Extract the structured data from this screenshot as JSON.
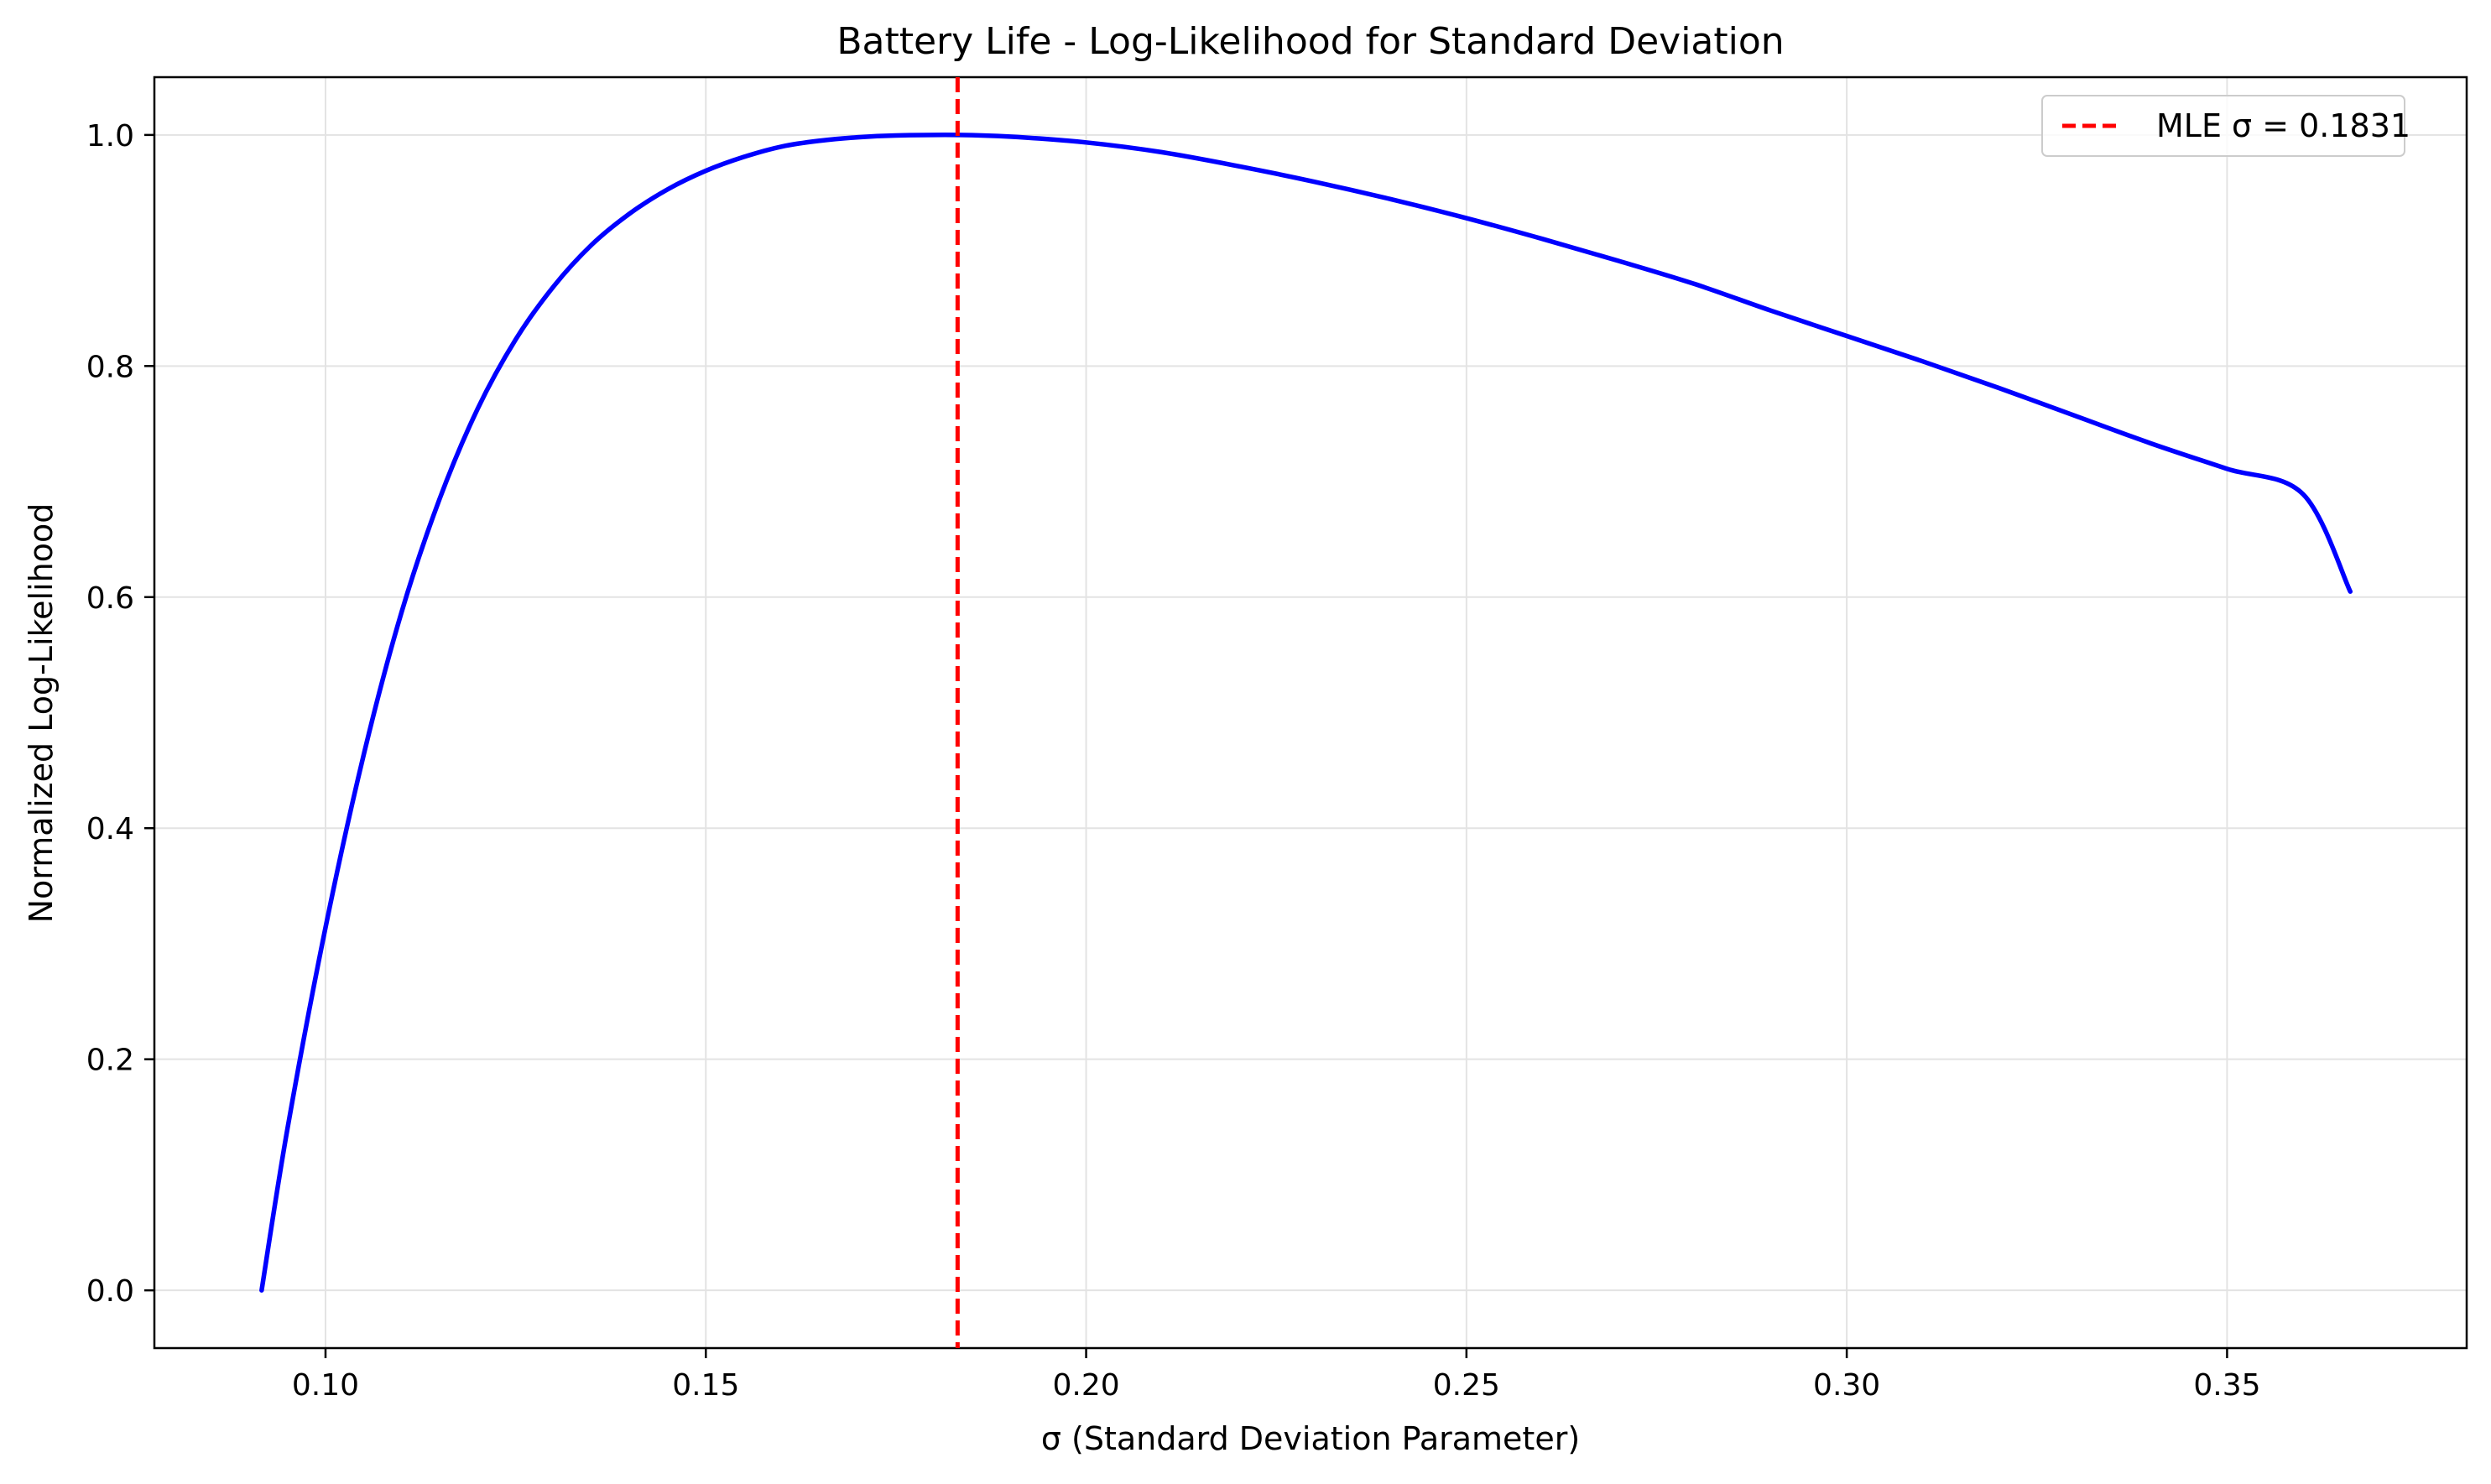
{
  "chart_data": {
    "type": "line",
    "title": "Battery Life - Log-Likelihood for Standard Deviation",
    "xlabel": "σ (Standard Deviation Parameter)",
    "ylabel": "Normalized Log-Likelihood",
    "xlim": [
      0.0775,
      0.3815
    ],
    "ylim": [
      -0.05,
      1.05
    ],
    "xticks": [
      0.1,
      0.15,
      0.2,
      0.25,
      0.3,
      0.35
    ],
    "xtick_labels": [
      "0.10",
      "0.15",
      "0.20",
      "0.25",
      "0.30",
      "0.35"
    ],
    "yticks": [
      0.0,
      0.2,
      0.4,
      0.6,
      0.8,
      1.0
    ],
    "ytick_labels": [
      "0.0",
      "0.2",
      "0.4",
      "0.6",
      "0.8",
      "1.0"
    ],
    "grid": true,
    "legend_placement": "top-right",
    "series": [
      {
        "kind": "line",
        "color": "#0000ff",
        "x": [
          0.0916,
          0.095,
          0.1,
          0.105,
          0.11,
          0.115,
          0.12,
          0.125,
          0.13,
          0.135,
          0.14,
          0.145,
          0.15,
          0.155,
          0.16,
          0.165,
          0.17,
          0.175,
          0.1831,
          0.19,
          0.2,
          0.21,
          0.22,
          0.23,
          0.24,
          0.25,
          0.26,
          0.27,
          0.28,
          0.29,
          0.3,
          0.31,
          0.32,
          0.33,
          0.34,
          0.35,
          0.36,
          0.3662
        ],
        "y": [
          0.0,
          0.14,
          0.314,
          0.463,
          0.587,
          0.685,
          0.763,
          0.823,
          0.869,
          0.905,
          0.932,
          0.953,
          0.969,
          0.981,
          0.99,
          0.995,
          0.998,
          0.9995,
          1.0,
          0.9985,
          0.9935,
          0.985,
          0.973,
          0.9595,
          0.9445,
          0.928,
          0.91,
          0.891,
          0.871,
          0.848,
          0.826,
          0.804,
          0.781,
          0.757,
          0.733,
          0.711,
          0.689,
          0.6048
        ]
      },
      {
        "kind": "vline",
        "name": "MLE σ = 0.1831",
        "x": 0.1831,
        "color": "#ff0000",
        "style": "dashed"
      }
    ]
  }
}
